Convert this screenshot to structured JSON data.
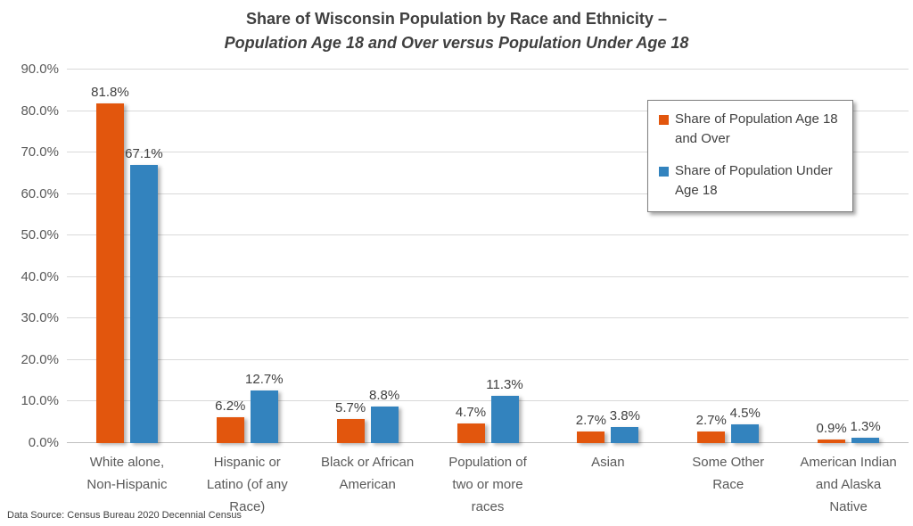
{
  "title": {
    "line1": "Share of Wisconsin Population by Race and Ethnicity –",
    "line2": "Population Age 18 and Over versus Population Under Age 18"
  },
  "source_note": "Data Source: Census Bureau 2020 Decennial Census",
  "colors": {
    "series1": "#E2560D",
    "series2": "#3383BE",
    "gridline": "#D9D9D9",
    "axis_line": "#BFBFBF",
    "title_text": "#3F3F3F",
    "tick_text": "#595959",
    "label_text": "#404040"
  },
  "chart_data": {
    "type": "bar",
    "title": "Share of Wisconsin Population by Race and Ethnicity – Population Age 18 and Over versus Population Under Age 18",
    "categories": [
      "White alone, Non-Hispanic",
      "Hispanic or Latino (of any Race)",
      "Black or African American",
      "Population of two or more races",
      "Asian",
      "Some Other Race",
      "American Indian and Alaska Native"
    ],
    "series": [
      {
        "name": "Share of Population Age 18 and Over",
        "color": "#E2560D",
        "values": [
          81.8,
          6.2,
          5.7,
          4.7,
          2.7,
          2.7,
          0.9
        ],
        "labels": [
          "81.8%",
          "6.2%",
          "5.7%",
          "4.7%",
          "2.7%",
          "2.7%",
          "0.9%"
        ]
      },
      {
        "name": "Share of Population Under Age 18",
        "color": "#3383BE",
        "values": [
          67.1,
          12.7,
          8.8,
          11.3,
          3.8,
          4.5,
          1.3
        ],
        "labels": [
          "67.1%",
          "12.7%",
          "8.8%",
          "11.3%",
          "3.8%",
          "4.5%",
          "1.3%"
        ]
      }
    ],
    "xlabel": "",
    "ylabel": "",
    "ylim": [
      0,
      90
    ],
    "yticks": {
      "values": [
        0,
        10,
        20,
        30,
        40,
        50,
        60,
        70,
        80,
        90
      ],
      "labels": [
        "0.0%",
        "10.0%",
        "20.0%",
        "30.0%",
        "40.0%",
        "50.0%",
        "60.0%",
        "70.0%",
        "80.0%",
        "90.0%"
      ]
    },
    "grid": true,
    "legend_position": "top-right"
  }
}
